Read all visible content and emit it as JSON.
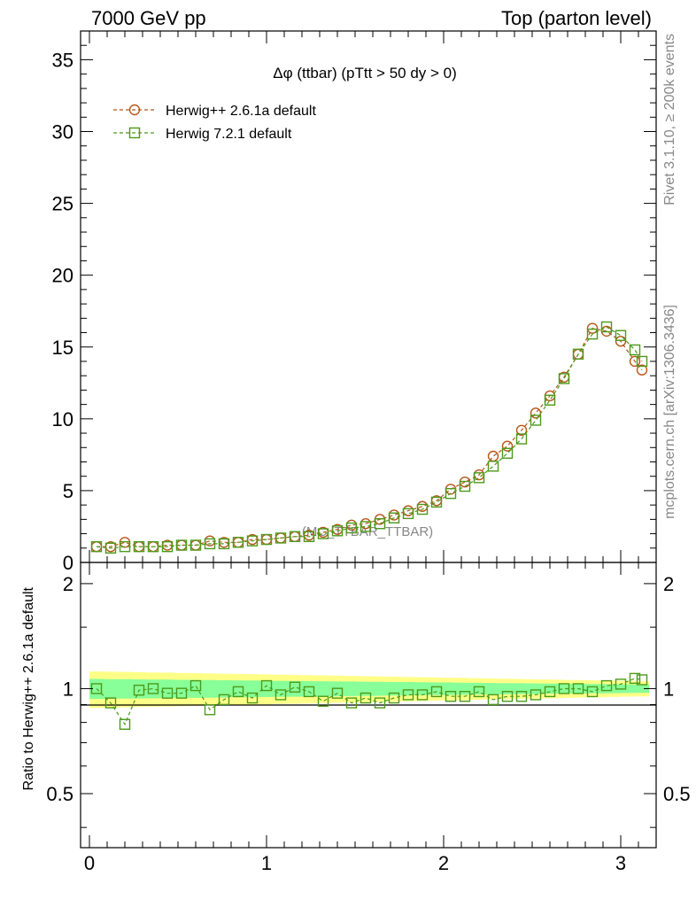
{
  "header": {
    "left": "7000 GeV pp",
    "right": "Top (parton level)"
  },
  "side": {
    "rivet": "Rivet 3.1.10, ≥ 200k events",
    "mcplots": "mcplots.cern.ch [arXiv:1306.3436]"
  },
  "watermark": "(MC_TTBAR_TTBAR)",
  "chart_data": {
    "type": "line",
    "title": "Δφ (ttbar) (pTtt > 50 dy > 0)",
    "xlabel": "",
    "ylabel": "",
    "xlim": [
      -0.05,
      3.2
    ],
    "ylim": [
      0,
      37
    ],
    "ratio_ylabel": "Ratio to Herwig++ 2.6.1a default",
    "ratio_ylim": [
      0.35,
      2.3
    ],
    "x_ticks": [
      "0",
      "1",
      "2",
      "3"
    ],
    "y_ticks": [
      "0",
      "5",
      "10",
      "15",
      "20",
      "25",
      "30",
      "35"
    ],
    "ratio_ticks": [
      "0.5",
      "1",
      "2"
    ],
    "legend_position": "top-left",
    "x": [
      0.04,
      0.12,
      0.2,
      0.28,
      0.36,
      0.44,
      0.52,
      0.6,
      0.68,
      0.76,
      0.84,
      0.92,
      1.0,
      1.08,
      1.16,
      1.24,
      1.32,
      1.4,
      1.48,
      1.56,
      1.64,
      1.72,
      1.8,
      1.88,
      1.96,
      2.04,
      2.12,
      2.2,
      2.28,
      2.36,
      2.44,
      2.52,
      2.6,
      2.68,
      2.76,
      2.84,
      2.92,
      3.0,
      3.08,
      3.12
    ],
    "series": [
      {
        "name": "Herwig++ 2.6.1a default",
        "color": "#b5561a",
        "marker": "circle",
        "values": [
          1.1,
          1.1,
          1.4,
          1.1,
          1.1,
          1.2,
          1.2,
          1.2,
          1.5,
          1.4,
          1.4,
          1.6,
          1.6,
          1.7,
          1.8,
          1.9,
          2.1,
          2.3,
          2.6,
          2.7,
          3.0,
          3.3,
          3.6,
          3.9,
          4.3,
          5.1,
          5.6,
          6.1,
          7.4,
          8.1,
          9.2,
          10.4,
          11.6,
          12.9,
          14.5,
          16.3,
          16.1,
          15.4,
          14.0,
          13.4
        ]
      },
      {
        "name": "Herwig 7.2.1 default",
        "color": "#4c9a1a",
        "marker": "square",
        "values": [
          1.1,
          1.0,
          1.1,
          1.1,
          1.1,
          1.1,
          1.2,
          1.2,
          1.3,
          1.3,
          1.4,
          1.5,
          1.6,
          1.7,
          1.8,
          1.8,
          2.0,
          2.2,
          2.4,
          2.5,
          2.7,
          3.1,
          3.4,
          3.7,
          4.2,
          4.8,
          5.3,
          5.9,
          6.7,
          7.6,
          8.6,
          9.9,
          11.3,
          12.8,
          14.5,
          15.9,
          16.4,
          15.8,
          14.8,
          14.0
        ]
      }
    ],
    "ratio": [
      1.0,
      0.91,
      0.79,
      0.99,
      1.0,
      0.97,
      0.97,
      1.02,
      0.87,
      0.93,
      0.98,
      0.94,
      1.02,
      0.96,
      1.01,
      0.98,
      0.92,
      0.97,
      0.91,
      0.94,
      0.91,
      0.94,
      0.96,
      0.96,
      0.98,
      0.95,
      0.95,
      0.98,
      0.93,
      0.95,
      0.95,
      0.96,
      0.98,
      1.0,
      1.0,
      0.98,
      1.02,
      1.03,
      1.07,
      1.06
    ]
  }
}
